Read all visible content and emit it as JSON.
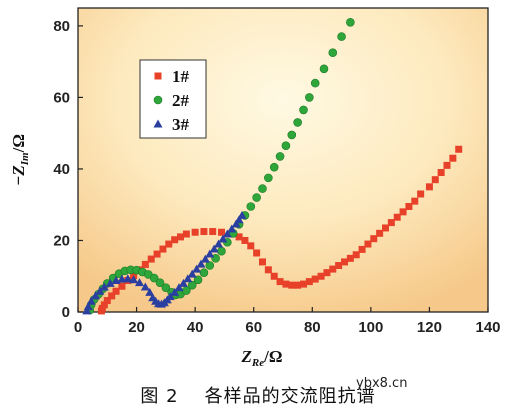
{
  "chart_data": {
    "type": "scatter",
    "title": "",
    "xlabel": "Z",
    "xlabel_sub": "Re",
    "xlabel_unit": "/Ω",
    "ylabel_prefix": "−Z",
    "ylabel_sub": "Im",
    "ylabel_unit": "/Ω",
    "xlim": [
      0,
      140
    ],
    "ylim": [
      0,
      85
    ],
    "xticks": [
      0,
      20,
      40,
      60,
      80,
      100,
      120,
      140
    ],
    "yticks": [
      0,
      20,
      40,
      60,
      80
    ],
    "grid": false,
    "legend_position": "top-left",
    "background": "radial gradient, pale yellow center to light orange edges",
    "series": [
      {
        "name": "1#",
        "marker": "square",
        "color": "#e8412a",
        "points": [
          [
            8,
            0.3
          ],
          [
            8.3,
            1
          ],
          [
            9,
            2
          ],
          [
            10,
            3.2
          ],
          [
            11.5,
            4.5
          ],
          [
            13,
            5.8
          ],
          [
            15,
            7.2
          ],
          [
            17,
            8.8
          ],
          [
            19,
            10.2
          ],
          [
            21,
            11.8
          ],
          [
            23,
            13.3
          ],
          [
            25,
            14.8
          ],
          [
            27,
            16.2
          ],
          [
            29,
            17.6
          ],
          [
            31,
            19
          ],
          [
            33,
            20.2
          ],
          [
            35,
            21
          ],
          [
            37,
            21.8
          ],
          [
            40,
            22.3
          ],
          [
            43,
            22.5
          ],
          [
            46,
            22.5
          ],
          [
            49,
            22.3
          ],
          [
            52,
            21.8
          ],
          [
            55,
            21
          ],
          [
            57,
            20
          ],
          [
            59,
            18.5
          ],
          [
            61,
            16.5
          ],
          [
            63,
            14
          ],
          [
            65,
            11.8
          ],
          [
            67,
            10
          ],
          [
            69,
            8.5
          ],
          [
            71,
            7.8
          ],
          [
            73,
            7.5
          ],
          [
            75,
            7.5
          ],
          [
            77,
            7.8
          ],
          [
            79,
            8.5
          ],
          [
            81,
            9.2
          ],
          [
            83,
            10
          ],
          [
            85,
            11
          ],
          [
            87,
            12
          ],
          [
            89,
            13
          ],
          [
            91,
            14
          ],
          [
            93,
            15
          ],
          [
            95,
            16
          ],
          [
            97,
            17.5
          ],
          [
            99,
            19
          ],
          [
            101,
            20.5
          ],
          [
            103,
            22
          ],
          [
            105,
            23.5
          ],
          [
            107,
            25
          ],
          [
            109,
            26.5
          ],
          [
            111,
            28
          ],
          [
            113,
            29.5
          ],
          [
            115,
            31
          ],
          [
            117,
            33
          ],
          [
            120,
            35
          ],
          [
            122,
            37
          ],
          [
            124,
            39
          ],
          [
            126,
            41
          ],
          [
            128,
            43
          ],
          [
            130,
            45.5
          ]
        ]
      },
      {
        "name": "2#",
        "marker": "circle",
        "color": "#2fa63a",
        "points": [
          [
            4,
            0.5
          ],
          [
            4.5,
            2
          ],
          [
            5.5,
            3.5
          ],
          [
            7,
            5
          ],
          [
            8.5,
            6.5
          ],
          [
            10,
            8
          ],
          [
            12,
            9.5
          ],
          [
            14,
            10.7
          ],
          [
            16,
            11.5
          ],
          [
            18,
            11.8
          ],
          [
            20,
            11.7
          ],
          [
            22,
            11.2
          ],
          [
            24,
            10.5
          ],
          [
            26,
            9.5
          ],
          [
            28,
            8.2
          ],
          [
            30,
            6.8
          ],
          [
            32,
            5.5
          ],
          [
            33.5,
            4.8
          ],
          [
            35,
            5
          ],
          [
            37,
            6
          ],
          [
            39,
            7.5
          ],
          [
            41,
            9
          ],
          [
            43,
            11
          ],
          [
            45,
            13
          ],
          [
            47,
            15
          ],
          [
            49,
            17
          ],
          [
            51,
            19.5
          ],
          [
            53,
            22
          ],
          [
            55,
            24.5
          ],
          [
            57,
            27
          ],
          [
            59,
            29.5
          ],
          [
            61,
            32
          ],
          [
            63,
            34.5
          ],
          [
            65,
            37.5
          ],
          [
            67,
            40.5
          ],
          [
            69,
            43.5
          ],
          [
            71,
            46.5
          ],
          [
            73,
            49.5
          ],
          [
            75,
            53
          ],
          [
            77,
            56.5
          ],
          [
            79,
            60
          ],
          [
            81,
            64
          ],
          [
            84,
            68
          ],
          [
            87,
            72.5
          ],
          [
            90,
            77
          ],
          [
            93,
            81
          ]
        ]
      },
      {
        "name": "3#",
        "marker": "triangle",
        "color": "#2a3fa0",
        "points": [
          [
            3,
            0.3
          ],
          [
            3.5,
            1.5
          ],
          [
            4.5,
            3
          ],
          [
            6,
            4.5
          ],
          [
            7.5,
            5.8
          ],
          [
            9,
            7
          ],
          [
            11,
            8
          ],
          [
            13,
            8.8
          ],
          [
            15,
            9.2
          ],
          [
            17,
            9.3
          ],
          [
            19,
            9
          ],
          [
            21,
            8.2
          ],
          [
            23,
            7
          ],
          [
            24.5,
            5.5
          ],
          [
            25.5,
            4
          ],
          [
            26.5,
            3
          ],
          [
            27.5,
            2.3
          ],
          [
            28.5,
            2.2
          ],
          [
            29.5,
            2.6
          ],
          [
            30.5,
            3.4
          ],
          [
            31.5,
            4.3
          ],
          [
            33,
            5.5
          ],
          [
            34.5,
            6.8
          ],
          [
            36,
            8
          ],
          [
            37.5,
            9.3
          ],
          [
            39,
            10.6
          ],
          [
            40.5,
            12
          ],
          [
            42,
            13.4
          ],
          [
            43.5,
            14.8
          ],
          [
            45,
            16.2
          ],
          [
            46.5,
            17.6
          ],
          [
            48,
            19
          ],
          [
            49.5,
            20.4
          ],
          [
            51,
            21.8
          ],
          [
            52.5,
            23.2
          ],
          [
            54,
            24.6
          ],
          [
            55,
            25.8
          ],
          [
            56,
            27
          ]
        ]
      }
    ]
  },
  "caption": {
    "number": "图 2",
    "text": "各样品的交流阻抗谱"
  },
  "watermark": "ybx8.cn"
}
